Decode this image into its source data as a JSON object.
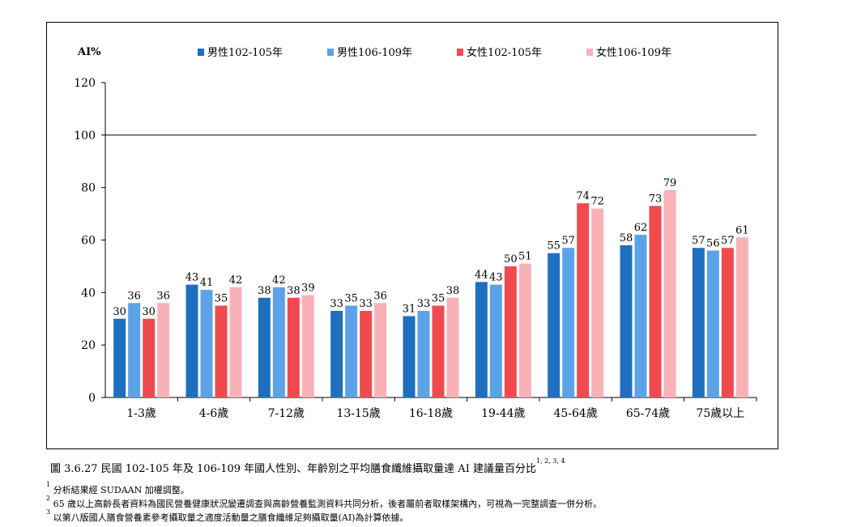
{
  "chart_data": {
    "type": "bar",
    "ylabel": "AI%",
    "ylim": [
      0,
      120
    ],
    "yticks": [
      0,
      20,
      40,
      60,
      80,
      100,
      120
    ],
    "reference_line": 100,
    "legend_position": "top",
    "categories": [
      "1-3歲",
      "4-6歲",
      "7-12歲",
      "13-15歲",
      "16-18歲",
      "19-44歲",
      "45-64歲",
      "65-74歲",
      "75歲以上"
    ],
    "series": [
      {
        "name": "男性102-105年",
        "color": "#1f6fc0",
        "values": [
          30,
          43,
          38,
          33,
          31,
          44,
          55,
          58,
          57
        ]
      },
      {
        "name": "男性106-109年",
        "color": "#5ba3e6",
        "values": [
          36,
          41,
          42,
          35,
          33,
          43,
          57,
          62,
          56
        ]
      },
      {
        "name": "女性102-105年",
        "color": "#f04a4f",
        "values": [
          30,
          35,
          38,
          33,
          35,
          50,
          74,
          73,
          57
        ]
      },
      {
        "name": "女性106-109年",
        "color": "#f9b1b8",
        "values": [
          36,
          42,
          39,
          36,
          38,
          51,
          72,
          79,
          61
        ]
      }
    ]
  },
  "caption": {
    "text": "圖 3.6.27 民國 102-105 年及 106-109 年國人性別、年齡別之平均膳食纖維攝取量達 AI 建議量百分比",
    "refs": "1, 2, 3, 4"
  },
  "footnotes": [
    {
      "mark": "1",
      "text": "分析結果經 SUDAAN 加權調整。"
    },
    {
      "mark": "2",
      "text": "65 歲以上高齡長者資料為國民營養健康狀況變遷調查與高齡營養監測資料共同分析，後者屬前者取樣架構內，可視為一完整調查一併分析。"
    },
    {
      "mark": "3",
      "text": "以第八版國人膳食營養素參考攝取量之適度活動量之膳食纖維足夠攝取量(AI)為計算依據。"
    }
  ]
}
